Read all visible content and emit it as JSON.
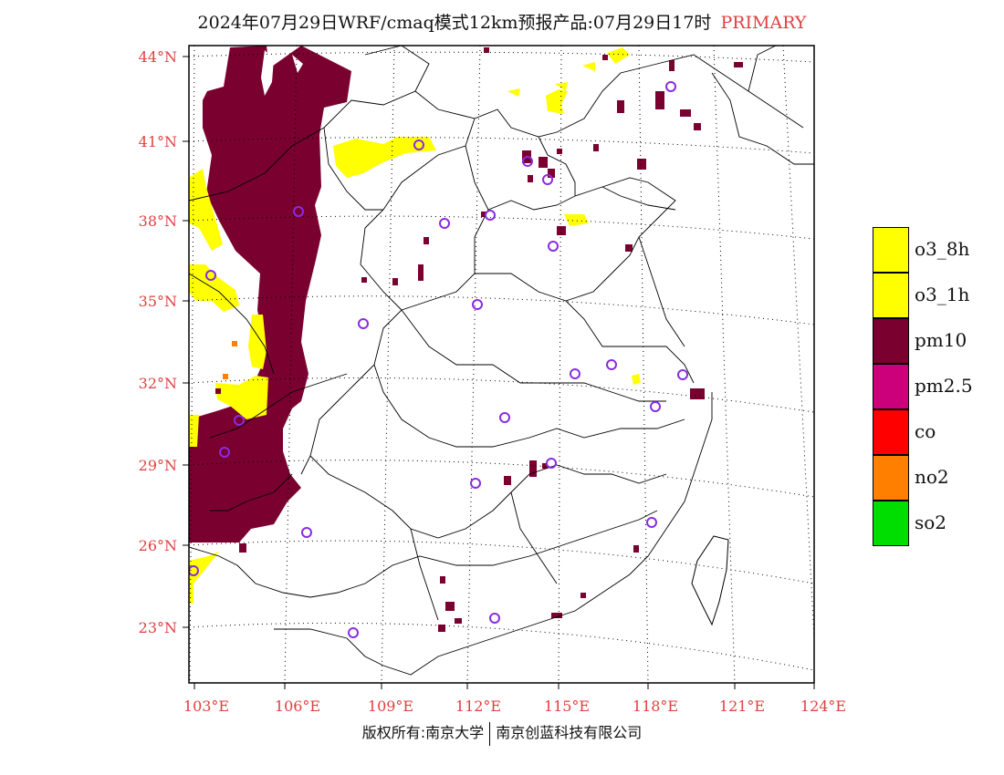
{
  "title": {
    "main": "2024年07月29日WRF/cmaq模式12km预报产品:07月29日17时",
    "tag": "PRIMARY"
  },
  "map": {
    "lat_labels": [
      "44°N",
      "41°N",
      "38°N",
      "35°N",
      "32°N",
      "29°N",
      "26°N",
      "23°N"
    ],
    "lon_labels": [
      "103°E",
      "106°E",
      "109°E",
      "112°E",
      "115°E",
      "118°E",
      "121°E",
      "124°E"
    ],
    "colors": {
      "pm10": "#7a0030",
      "o3": "#ffff00",
      "station": "#8a2be2",
      "grid": "#000000"
    }
  },
  "legend": [
    {
      "label": "o3_8h",
      "color": "#ffff00"
    },
    {
      "label": "o3_1h",
      "color": "#ffff00"
    },
    {
      "label": "pm10",
      "color": "#7a0030"
    },
    {
      "label": "pm2.5",
      "color": "#cc007a"
    },
    {
      "label": "co",
      "color": "#ff0000"
    },
    {
      "label": "no2",
      "color": "#ff8000"
    },
    {
      "label": "so2",
      "color": "#00dd00"
    }
  ],
  "footer": {
    "left": "版权所有:南京大学",
    "right": "南京创蓝科技有限公司"
  }
}
